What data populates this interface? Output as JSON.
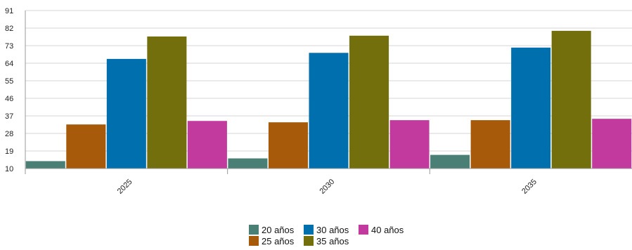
{
  "chart_data": {
    "type": "bar",
    "categories": [
      "2025",
      "2030",
      "2035"
    ],
    "series": [
      {
        "name": "20 años",
        "color": "#4a7f76",
        "values": [
          13.8,
          15.2,
          17.0
        ]
      },
      {
        "name": "25 años",
        "color": "#a65a0a",
        "values": [
          32.6,
          33.7,
          34.8
        ]
      },
      {
        "name": "30 años",
        "color": "#006fad",
        "values": [
          66.2,
          69.3,
          72.0
        ]
      },
      {
        "name": "35 años",
        "color": "#736f0c",
        "values": [
          77.7,
          78.1,
          80.6
        ]
      },
      {
        "name": "40 años",
        "color": "#c23a9d",
        "values": [
          34.4,
          34.8,
          35.5
        ]
      }
    ],
    "yticks": [
      10,
      19,
      28,
      37,
      46,
      55,
      64,
      73,
      82,
      91
    ],
    "ylim": [
      10,
      91
    ],
    "grid": true,
    "legend_position": "bottom-center"
  }
}
